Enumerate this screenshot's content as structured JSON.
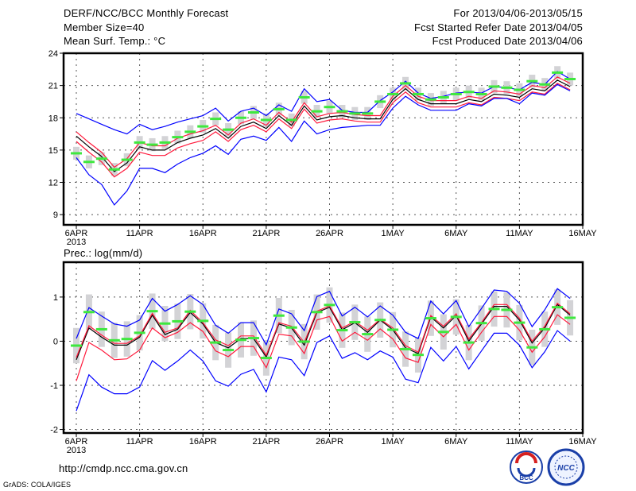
{
  "header": {
    "title": "DERF/NCC/BCC Monthly Forecast",
    "member_size": "Member Size=40",
    "temp_label": "Mean Surf. Temp.: °C",
    "period": "For 2013/04/06-2013/05/15",
    "started": "Fcst Started Refer Date 2013/04/05",
    "produced": "Fcst Produced Date 2013/04/06"
  },
  "footer": {
    "url": "http://cmdp.ncc.cma.gov.cn",
    "grads": "GrADS: COLA/IGES",
    "logo_bcc": "BCC",
    "logo_ncc": "NCC"
  },
  "colors": {
    "mean": "#000000",
    "spread": "#ff1a3c",
    "extreme": "#0000ff",
    "marker": "#3ee83e",
    "box": "#d3d3d6"
  },
  "chart_data": [
    {
      "type": "line",
      "title": "Mean Surf. Temp.: °C",
      "x_tick_labels": [
        "6APR",
        "11APR",
        "16APR",
        "21APR",
        "26APR",
        "1MAY",
        "6MAY",
        "11MAY",
        "16MAY"
      ],
      "x_year_label": "2013",
      "x_tick_days": [
        0,
        5,
        10,
        15,
        20,
        25,
        30,
        35,
        40
      ],
      "xlim_days": [
        -1,
        40
      ],
      "ylim": [
        8.05,
        24
      ],
      "y_ticks": [
        9,
        12,
        15,
        18,
        21,
        24
      ],
      "y_tick_labels": [
        "9",
        "12",
        "15",
        "18",
        "21",
        "24"
      ],
      "grid": true,
      "box_halfrange": 0.6,
      "series": [
        {
          "name": "ensemble-mean",
          "color_key": "mean",
          "values": [
            16.3,
            15.3,
            14.4,
            13.0,
            13.8,
            15.3,
            15.0,
            15.0,
            15.7,
            16.1,
            16.4,
            17.0,
            16.1,
            17.2,
            17.6,
            17.0,
            18.2,
            17.3,
            19.1,
            17.8,
            18.1,
            18.2,
            18.0,
            17.9,
            17.9,
            19.7,
            20.7,
            19.7,
            19.3,
            19.3,
            19.3,
            19.7,
            19.5,
            20.2,
            20.1,
            19.9,
            20.7,
            20.5,
            21.5,
            20.9
          ]
        },
        {
          "name": "spread-upper",
          "color_key": "spread",
          "values": [
            16.7,
            15.7,
            14.8,
            13.4,
            14.2,
            15.7,
            15.4,
            15.4,
            16.1,
            16.5,
            16.8,
            17.3,
            16.4,
            17.5,
            17.9,
            17.3,
            18.5,
            17.6,
            19.4,
            18.1,
            18.4,
            18.5,
            18.3,
            18.2,
            18.2,
            20.0,
            21.0,
            20.0,
            19.6,
            19.6,
            19.6,
            20.0,
            19.8,
            20.5,
            20.4,
            20.2,
            21.0,
            20.8,
            21.8,
            21.2
          ]
        },
        {
          "name": "spread-lower",
          "color_key": "spread",
          "values": [
            15.8,
            14.8,
            13.9,
            12.5,
            13.3,
            14.8,
            14.5,
            14.5,
            15.2,
            15.6,
            15.9,
            16.7,
            15.8,
            16.9,
            17.3,
            16.7,
            17.9,
            17.0,
            18.8,
            17.5,
            17.8,
            17.9,
            17.7,
            17.6,
            17.6,
            19.4,
            20.4,
            19.4,
            19.0,
            19.0,
            19.0,
            19.4,
            19.2,
            19.9,
            19.8,
            19.6,
            20.4,
            20.2,
            21.2,
            20.6
          ]
        },
        {
          "name": "member-max",
          "color_key": "extreme",
          "values": [
            18.4,
            17.9,
            17.4,
            16.9,
            16.5,
            17.4,
            16.9,
            17.2,
            17.6,
            17.9,
            18.2,
            18.9,
            17.7,
            18.6,
            18.9,
            18.2,
            19.2,
            18.6,
            20.7,
            19.5,
            19.7,
            18.7,
            18.5,
            18.5,
            19.6,
            20.4,
            21.4,
            20.3,
            19.8,
            20.0,
            20.3,
            20.4,
            20.3,
            20.9,
            20.8,
            20.6,
            21.3,
            21.1,
            22.3,
            21.6
          ]
        },
        {
          "name": "member-min",
          "color_key": "extreme",
          "values": [
            14.3,
            12.7,
            11.8,
            9.9,
            11.2,
            13.3,
            13.3,
            12.9,
            13.7,
            14.3,
            14.7,
            15.4,
            14.6,
            16.0,
            16.3,
            15.9,
            17.1,
            15.8,
            17.7,
            16.5,
            16.9,
            17.1,
            17.2,
            17.3,
            17.3,
            18.9,
            20.0,
            19.2,
            18.7,
            18.7,
            18.7,
            19.3,
            19.1,
            19.8,
            19.8,
            19.3,
            20.3,
            20.1,
            21.1,
            20.5
          ]
        },
        {
          "name": "marker",
          "color_key": "marker",
          "values": [
            14.7,
            13.9,
            14.2,
            13.2,
            14.1,
            15.7,
            15.5,
            15.7,
            16.2,
            16.7,
            17.2,
            17.9,
            16.9,
            18.0,
            18.5,
            17.8,
            18.8,
            17.8,
            19.9,
            18.6,
            19.0,
            18.6,
            18.4,
            18.4,
            19.5,
            20.2,
            21.2,
            20.2,
            19.7,
            19.9,
            20.2,
            20.4,
            20.2,
            20.9,
            20.8,
            20.6,
            21.4,
            21.1,
            22.2,
            21.6
          ]
        }
      ]
    },
    {
      "type": "line",
      "title": "Prec.: log(mm/d)",
      "x_tick_labels": [
        "6APR",
        "11APR",
        "16APR",
        "21APR",
        "26APR",
        "1MAY",
        "6MAY",
        "11MAY",
        "16MAY"
      ],
      "x_year_label": "2013",
      "x_tick_days": [
        0,
        5,
        10,
        15,
        20,
        25,
        30,
        35,
        40
      ],
      "xlim_days": [
        -1,
        40
      ],
      "ylim": [
        -2.08,
        1.79
      ],
      "y_ticks": [
        -2,
        -1,
        0,
        1
      ],
      "y_tick_labels": [
        "-2",
        "-1",
        "0",
        "1"
      ],
      "grid": true,
      "box_halfrange": 0.4,
      "series": [
        {
          "name": "ensemble-mean",
          "color_key": "mean",
          "values": [
            -0.42,
            0.3,
            0.09,
            -0.09,
            -0.09,
            0.09,
            0.59,
            0.15,
            0.27,
            0.65,
            0.39,
            -0.03,
            -0.15,
            0.06,
            0.06,
            -0.36,
            0.39,
            0.3,
            -0.09,
            0.65,
            0.77,
            0.26,
            0.42,
            0.2,
            0.48,
            0.26,
            -0.15,
            -0.28,
            0.55,
            0.3,
            0.58,
            0.0,
            0.39,
            0.79,
            0.79,
            0.48,
            -0.04,
            0.3,
            0.83,
            0.59
          ]
        },
        {
          "name": "spread-upper",
          "color_key": "spread",
          "values": [
            -0.37,
            0.35,
            0.14,
            -0.05,
            -0.05,
            0.12,
            0.63,
            0.2,
            0.3,
            0.7,
            0.42,
            0.03,
            -0.1,
            0.12,
            0.12,
            -0.32,
            0.42,
            0.34,
            -0.03,
            0.68,
            0.8,
            0.3,
            0.45,
            0.25,
            0.5,
            0.3,
            -0.1,
            -0.25,
            0.58,
            0.34,
            0.62,
            0.05,
            0.42,
            0.83,
            0.83,
            0.52,
            0.0,
            0.34,
            0.86,
            0.62
          ]
        },
        {
          "name": "spread-lower",
          "color_key": "spread",
          "values": [
            -0.9,
            -0.03,
            -0.2,
            -0.42,
            -0.4,
            -0.2,
            0.3,
            0.08,
            0.2,
            0.42,
            0.22,
            -0.22,
            -0.35,
            -0.12,
            -0.12,
            -0.6,
            0.16,
            0.12,
            -0.28,
            0.48,
            0.56,
            0.0,
            0.2,
            0.02,
            0.28,
            0.05,
            -0.38,
            -0.48,
            0.38,
            0.1,
            0.38,
            -0.2,
            0.2,
            0.56,
            0.56,
            0.25,
            -0.25,
            0.1,
            0.6,
            0.38
          ]
        },
        {
          "name": "member-max",
          "color_key": "extreme",
          "values": [
            0.06,
            0.76,
            0.57,
            0.39,
            0.34,
            0.48,
            0.97,
            0.68,
            0.83,
            1.03,
            0.83,
            0.36,
            0.18,
            0.42,
            0.42,
            -0.08,
            0.73,
            0.62,
            0.24,
            1.01,
            1.13,
            0.57,
            0.77,
            0.55,
            0.8,
            0.59,
            0.2,
            0.06,
            0.91,
            0.62,
            0.92,
            0.33,
            0.74,
            1.16,
            1.13,
            0.86,
            0.33,
            0.71,
            1.19,
            0.97
          ]
        },
        {
          "name": "member-min",
          "color_key": "extreme",
          "values": [
            -1.58,
            -0.76,
            -1.04,
            -1.19,
            -1.19,
            -1.04,
            -0.44,
            -0.66,
            -0.45,
            -0.2,
            -0.45,
            -0.9,
            -1.02,
            -0.75,
            -0.64,
            -1.15,
            -0.36,
            -0.42,
            -0.78,
            -0.03,
            0.12,
            -0.39,
            -0.26,
            -0.42,
            -0.22,
            -0.36,
            -0.86,
            -0.94,
            -0.14,
            -0.45,
            -0.12,
            -0.63,
            -0.22,
            0.18,
            0.18,
            -0.09,
            -0.6,
            -0.24,
            0.24,
            0.0
          ]
        },
        {
          "name": "marker",
          "color_key": "marker",
          "values": [
            -0.1,
            0.66,
            0.27,
            0.02,
            0.05,
            0.19,
            0.68,
            0.4,
            0.45,
            0.67,
            0.46,
            -0.03,
            -0.2,
            0.03,
            0.07,
            -0.38,
            0.58,
            0.31,
            -0.01,
            0.66,
            0.82,
            0.25,
            0.43,
            0.16,
            0.48,
            0.26,
            -0.18,
            -0.31,
            0.52,
            0.21,
            0.55,
            -0.03,
            0.41,
            0.73,
            0.71,
            0.42,
            -0.14,
            0.27,
            0.77,
            0.53
          ]
        }
      ]
    }
  ]
}
